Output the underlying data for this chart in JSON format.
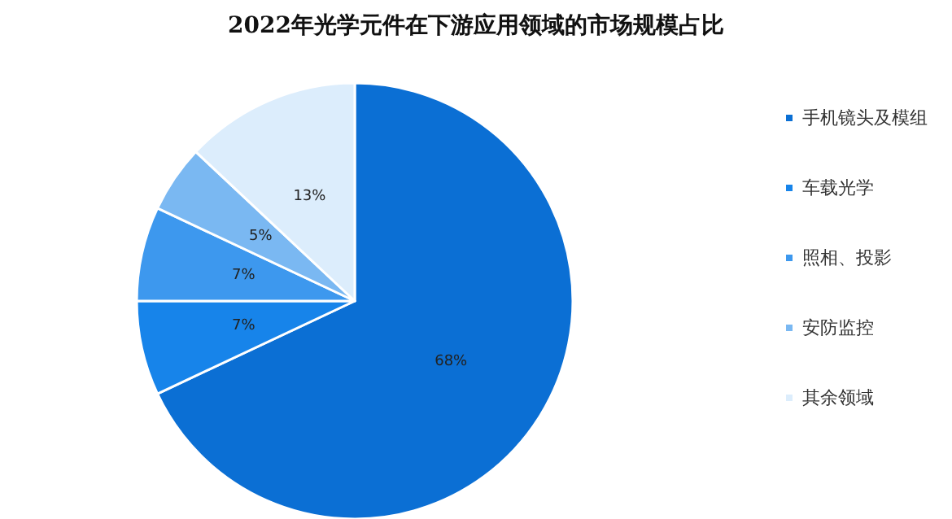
{
  "chart_data": {
    "type": "pie",
    "title": "2022年光学元件在下游应用领域的市场规模占比",
    "categories": [
      "手机镜头及模组",
      "车载光学",
      "照相、投影",
      "安防监控",
      "其余领域"
    ],
    "values": [
      68,
      7,
      7,
      5,
      13
    ],
    "colors": [
      "#0b6fd4",
      "#1784ea",
      "#3d98ee",
      "#7ab8f2",
      "#dcedfc"
    ],
    "value_labels": [
      "68%",
      "7%",
      "7%",
      "5%",
      "13%"
    ],
    "legend": "right"
  }
}
